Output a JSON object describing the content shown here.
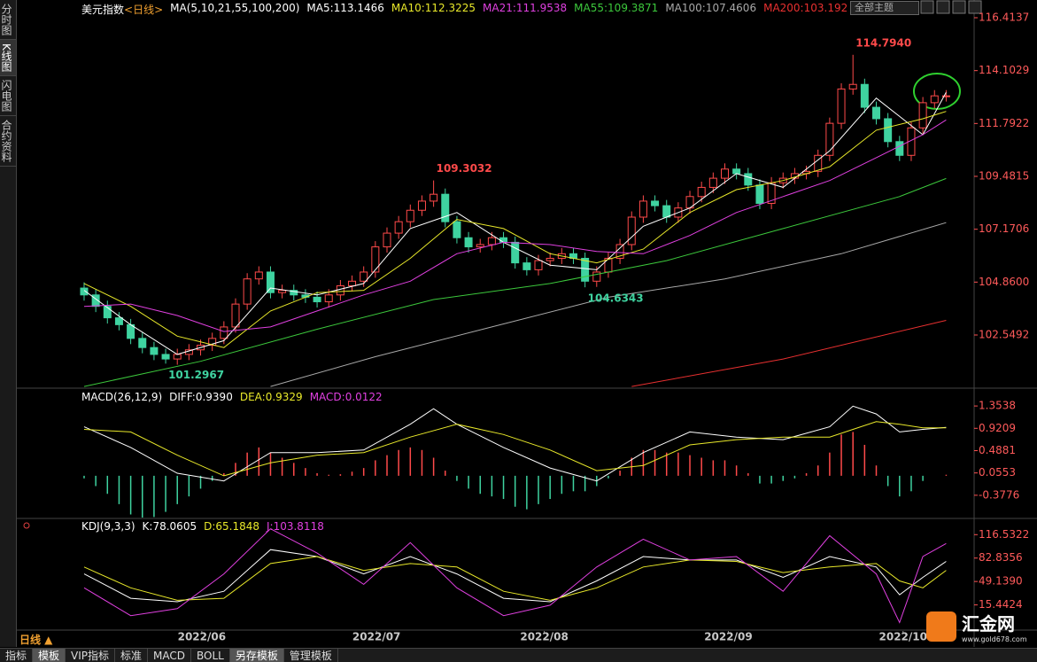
{
  "sidebar": [
    "分时图",
    "K线图",
    "闪电图",
    "合约资料"
  ],
  "toolbar": {
    "theme": "全部主题"
  },
  "period_tab": "日线 ▲",
  "tabs": [
    "指标",
    "模板",
    "VIP指标",
    "标准",
    "MACD",
    "BOLL",
    "另存模板",
    "管理模板"
  ],
  "logo": {
    "name": "汇金网",
    "url": "www.gold678.com"
  },
  "chart_data": [
    {
      "type": "candlestick",
      "title": "美元指数",
      "period": "<日线>",
      "ma_label": "MA(5,10,21,55,100,200)",
      "up_color": "#ff4a4a",
      "down_color": "#3fd3a0",
      "xlim": [
        -5.7,
        76.4
      ],
      "ylim": [
        100.2641,
        116.4137
      ],
      "yticks": [
        116.4137,
        114.1029,
        111.7922,
        109.4815,
        107.1706,
        {
          "value": 104.86,
          "label": "104.8600"
        },
        102.5492
      ],
      "open": [
        104.6,
        104.3,
        103.8,
        103.3,
        103.0,
        102.4,
        102.0,
        101.7,
        101.5,
        101.7,
        101.9,
        102.1,
        102.4,
        102.9,
        103.9,
        105.0,
        105.3,
        104.4,
        104.5,
        104.3,
        104.2,
        104.0,
        104.3,
        104.7,
        104.9,
        105.3,
        106.4,
        107.0,
        107.5,
        108.0,
        108.4,
        108.7,
        107.5,
        106.8,
        106.4,
        106.5,
        106.8,
        106.6,
        105.7,
        105.4,
        105.8,
        105.9,
        106.1,
        105.9,
        104.9,
        105.3,
        105.9,
        106.5,
        107.7,
        108.4,
        108.2,
        107.7,
        108.1,
        108.6,
        109.0,
        109.4,
        109.8,
        109.6,
        109.1,
        108.3,
        109.2,
        109.4,
        109.6,
        109.7,
        110.4,
        111.8,
        113.3,
        113.5,
        112.5,
        112.0,
        111.0,
        110.4,
        111.6,
        112.7,
        113.0
      ],
      "high": [
        104.85,
        104.55,
        104.05,
        103.55,
        103.25,
        102.65,
        102.25,
        101.95,
        101.95,
        102.15,
        102.35,
        102.65,
        103.15,
        104.15,
        105.25,
        105.55,
        105.55,
        104.75,
        104.75,
        104.55,
        104.45,
        104.55,
        104.95,
        105.15,
        105.55,
        106.65,
        107.25,
        107.75,
        108.25,
        108.65,
        109.3032,
        108.95,
        107.75,
        107.05,
        106.75,
        107.05,
        107.05,
        106.85,
        105.95,
        106.05,
        106.15,
        106.35,
        106.35,
        106.15,
        105.55,
        106.15,
        106.75,
        107.95,
        108.65,
        108.65,
        108.45,
        108.35,
        108.85,
        109.25,
        109.65,
        110.05,
        110.05,
        109.85,
        109.35,
        109.45,
        109.65,
        109.85,
        109.95,
        110.65,
        112.05,
        113.55,
        114.794,
        113.75,
        112.75,
        112.25,
        111.25,
        111.85,
        112.95,
        113.25,
        113.25
      ],
      "low": [
        104.05,
        103.55,
        103.05,
        102.75,
        102.15,
        101.75,
        101.45,
        101.2967,
        101.25,
        101.45,
        101.65,
        101.85,
        102.15,
        102.65,
        103.65,
        104.75,
        104.15,
        104.15,
        104.05,
        103.95,
        103.75,
        103.75,
        104.05,
        104.45,
        104.65,
        105.05,
        106.15,
        106.75,
        107.25,
        107.75,
        108.15,
        107.25,
        106.55,
        106.15,
        106.15,
        106.25,
        106.35,
        105.45,
        105.15,
        105.15,
        105.55,
        105.65,
        105.65,
        104.6343,
        104.65,
        105.05,
        105.65,
        106.25,
        107.45,
        107.95,
        107.45,
        107.45,
        107.85,
        108.35,
        108.75,
        109.15,
        109.35,
        108.85,
        108.05,
        108.05,
        108.95,
        109.15,
        109.35,
        109.45,
        110.15,
        111.55,
        113.05,
        112.25,
        111.75,
        110.75,
        110.15,
        110.15,
        111.35,
        112.45,
        112.75
      ],
      "close": [
        104.3,
        103.8,
        103.3,
        103.0,
        102.4,
        102.0,
        101.7,
        101.5,
        101.7,
        101.9,
        102.1,
        102.4,
        102.9,
        103.9,
        105.0,
        105.3,
        104.4,
        104.5,
        104.3,
        104.2,
        104.0,
        104.3,
        104.7,
        104.9,
        105.3,
        106.4,
        107.0,
        107.5,
        108.0,
        108.4,
        108.7,
        107.5,
        106.8,
        106.4,
        106.5,
        106.8,
        106.6,
        105.7,
        105.4,
        105.8,
        105.9,
        106.1,
        105.9,
        104.9,
        105.3,
        105.9,
        106.5,
        107.7,
        108.4,
        108.2,
        107.7,
        108.1,
        108.6,
        109.0,
        109.4,
        109.8,
        109.6,
        109.1,
        108.3,
        109.2,
        109.4,
        109.6,
        109.7,
        110.4,
        111.8,
        113.3,
        113.5,
        112.5,
        112.0,
        111.0,
        110.4,
        111.6,
        112.7,
        113.0,
        113.0
      ],
      "annotations": [
        {
          "text": "114.7940",
          "x": 66,
          "y": 114.794
        },
        {
          "text": "109.3032",
          "x": 30,
          "y": 109.3032
        },
        {
          "text": "104.6343",
          "x": 43,
          "y": 104.6343
        },
        {
          "text": "101.2967",
          "x": 7,
          "y": 101.2967
        }
      ],
      "series": [
        {
          "label": "MA5:113.1466",
          "color": "#ffffff",
          "x": [
            0,
            4,
            8,
            12,
            16,
            20,
            24,
            28,
            32,
            36,
            40,
            44,
            48,
            52,
            56,
            60,
            64,
            68,
            72,
            74
          ],
          "values": [
            104.5,
            103.0,
            101.7,
            102.3,
            104.6,
            104.3,
            104.8,
            107.2,
            107.9,
            106.6,
            105.6,
            105.4,
            107.3,
            108.1,
            109.6,
            109.0,
            110.6,
            112.9,
            111.3,
            113.15
          ]
        },
        {
          "label": "MA10:112.3225",
          "color": "#e8e82a",
          "x": [
            0,
            4,
            8,
            12,
            16,
            20,
            24,
            28,
            32,
            36,
            40,
            44,
            48,
            52,
            56,
            60,
            64,
            68,
            72,
            74
          ],
          "values": [
            104.8,
            103.8,
            102.5,
            102.0,
            103.6,
            104.4,
            104.5,
            105.9,
            107.6,
            107.2,
            106.1,
            105.7,
            106.3,
            107.9,
            108.9,
            109.3,
            109.9,
            111.5,
            112.0,
            112.32
          ]
        },
        {
          "label": "MA21:111.9538",
          "color": "#e040e0",
          "x": [
            0,
            4,
            8,
            12,
            16,
            20,
            24,
            28,
            32,
            36,
            40,
            44,
            48,
            52,
            56,
            60,
            64,
            68,
            72,
            74
          ],
          "values": [
            103.8,
            103.9,
            103.4,
            102.7,
            102.9,
            103.6,
            104.3,
            104.9,
            106.1,
            106.6,
            106.5,
            106.2,
            106.1,
            106.9,
            107.9,
            108.6,
            109.3,
            110.3,
            111.3,
            111.95
          ]
        },
        {
          "label": "MA55:109.3871",
          "color": "#3cc83c",
          "x": [
            0,
            10,
            20,
            30,
            40,
            50,
            60,
            70,
            74
          ],
          "values": [
            100.3,
            101.4,
            102.8,
            104.1,
            104.8,
            105.8,
            107.2,
            108.6,
            109.39
          ]
        },
        {
          "label": "MA100:107.4606",
          "color": "#a8a8a8",
          "x": [
            16,
            25,
            35,
            45,
            55,
            65,
            74
          ],
          "values": [
            100.3,
            101.6,
            102.9,
            104.2,
            105.0,
            106.1,
            107.46
          ]
        },
        {
          "label": "MA200:103.192",
          "color": "#e83030",
          "x": [
            47,
            60,
            74
          ],
          "values": [
            100.3,
            101.5,
            103.19
          ]
        }
      ]
    },
    {
      "type": "macd",
      "title": "MACD(26,12,9)",
      "xlim": [
        -5.7,
        76.4
      ],
      "ylim": [
        -0.81,
        1.665
      ],
      "yticks": [
        1.3538,
        0.9209,
        0.4881,
        0.0553,
        -0.3776
      ],
      "series": [
        {
          "label": "DIFF:0.9390",
          "color": "#ffffff",
          "x": [
            0,
            4,
            8,
            12,
            16,
            20,
            24,
            28,
            30,
            32,
            36,
            40,
            44,
            48,
            52,
            56,
            60,
            64,
            66,
            68,
            70,
            72,
            74
          ],
          "values": [
            0.95,
            0.55,
            0.05,
            -0.1,
            0.45,
            0.45,
            0.5,
            1.0,
            1.3,
            1.0,
            0.55,
            0.15,
            -0.1,
            0.45,
            0.85,
            0.75,
            0.7,
            0.95,
            1.35,
            1.2,
            0.85,
            0.9,
            0.94
          ]
        },
        {
          "label": "DEA:0.9329",
          "color": "#e8e82a",
          "x": [
            0,
            4,
            8,
            12,
            16,
            20,
            24,
            28,
            32,
            36,
            40,
            44,
            48,
            52,
            56,
            60,
            64,
            66,
            68,
            70,
            72,
            74
          ],
          "values": [
            0.9,
            0.85,
            0.4,
            0.0,
            0.25,
            0.4,
            0.45,
            0.75,
            1.0,
            0.8,
            0.5,
            0.1,
            0.2,
            0.6,
            0.7,
            0.75,
            0.75,
            0.9,
            1.05,
            1.0,
            0.93,
            0.93
          ]
        }
      ],
      "histogram": {
        "label": "MACD:0.0122",
        "label_color": "#e040e0",
        "up_color": "#ff4a4a",
        "down_color": "#3fd3a0",
        "values": [
          -0.05,
          -0.2,
          -0.35,
          -0.55,
          -0.75,
          -0.85,
          -0.8,
          -0.7,
          -0.55,
          -0.4,
          -0.25,
          -0.1,
          0.05,
          0.25,
          0.45,
          0.55,
          0.45,
          0.35,
          0.25,
          0.15,
          0.05,
          0.02,
          0.03,
          0.08,
          0.15,
          0.3,
          0.4,
          0.5,
          0.55,
          0.5,
          0.35,
          0.1,
          -0.1,
          -0.25,
          -0.35,
          -0.4,
          -0.45,
          -0.6,
          -0.65,
          -0.55,
          -0.45,
          -0.35,
          -0.3,
          -0.3,
          -0.2,
          -0.05,
          0.1,
          0.35,
          0.5,
          0.5,
          0.45,
          0.45,
          0.4,
          0.35,
          0.3,
          0.3,
          0.2,
          0.05,
          -0.15,
          -0.15,
          -0.1,
          -0.05,
          0.05,
          0.2,
          0.45,
          0.8,
          0.85,
          0.6,
          0.2,
          -0.2,
          -0.4,
          -0.3,
          -0.1,
          0.0,
          0.02
        ]
      }
    },
    {
      "type": "kdj",
      "title": "KDJ(9,3,3)",
      "xlim": [
        -5.7,
        76.4
      ],
      "ylim": [
        -22.1,
        138.6
      ],
      "yticks": [
        116.5322,
        82.8356,
        {
          "value": 49.139,
          "label": "49.1390"
        },
        15.4424
      ],
      "xticks": [
        {
          "value": 10.1,
          "label": "2022/06"
        },
        {
          "value": 25.1,
          "label": "2022/07"
        },
        {
          "value": 39.5,
          "label": "2022/08"
        },
        {
          "value": 55.3,
          "label": "2022/09"
        },
        {
          "value": 70.3,
          "label": "2022/10"
        }
      ],
      "series": [
        {
          "label": "K:78.0605",
          "color": "#ffffff",
          "x": [
            0,
            4,
            8,
            12,
            16,
            20,
            24,
            28,
            32,
            36,
            40,
            44,
            48,
            52,
            56,
            60,
            64,
            68,
            70,
            72,
            74
          ],
          "values": [
            60,
            25,
            20,
            35,
            95,
            85,
            60,
            85,
            60,
            25,
            20,
            50,
            85,
            80,
            80,
            55,
            85,
            70,
            30,
            55,
            78.06
          ]
        },
        {
          "label": "D:65.1848",
          "color": "#e8e82a",
          "x": [
            0,
            4,
            8,
            12,
            16,
            20,
            24,
            28,
            32,
            36,
            40,
            44,
            48,
            52,
            56,
            60,
            64,
            68,
            70,
            72,
            74
          ],
          "values": [
            70,
            40,
            22,
            25,
            75,
            85,
            65,
            75,
            70,
            35,
            22,
            40,
            70,
            80,
            78,
            62,
            70,
            75,
            50,
            40,
            65.18
          ]
        },
        {
          "label": "J:103.8118",
          "color": "#e040e0",
          "x": [
            0,
            4,
            8,
            12,
            16,
            20,
            24,
            28,
            32,
            36,
            40,
            44,
            48,
            52,
            56,
            60,
            64,
            68,
            70,
            72,
            74
          ],
          "values": [
            40,
            0,
            10,
            60,
            125,
            90,
            45,
            105,
            40,
            0,
            15,
            70,
            110,
            80,
            85,
            35,
            115,
            60,
            -10,
            85,
            103.81
          ]
        }
      ]
    }
  ]
}
